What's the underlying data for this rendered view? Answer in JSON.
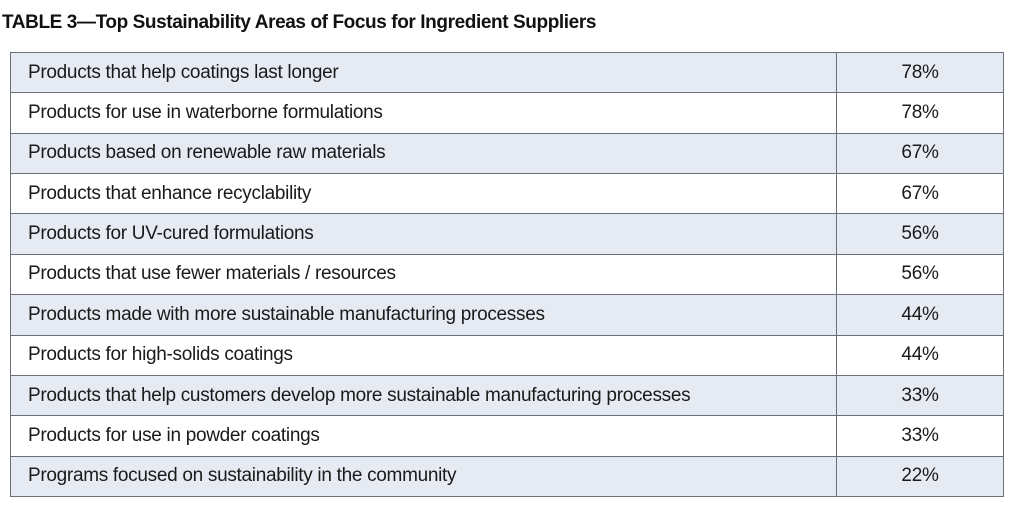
{
  "title": "TABLE 3—Top Sustainability Areas of Focus for Ingredient Suppliers",
  "rows": [
    {
      "label": "Products that help coatings last longer",
      "value": "78%"
    },
    {
      "label": "Products for use in waterborne formulations",
      "value": "78%"
    },
    {
      "label": "Products based on renewable raw materials",
      "value": "67%"
    },
    {
      "label": "Products that enhance recyclability",
      "value": "67%"
    },
    {
      "label": "Products for UV-cured formulations",
      "value": "56%"
    },
    {
      "label": "Products that use fewer materials / resources",
      "value": "56%"
    },
    {
      "label": "Products made with more sustainable manufacturing processes",
      "value": "44%"
    },
    {
      "label": "Products for high-solids coatings",
      "value": "44%"
    },
    {
      "label": "Products that help customers develop more sustainable manufacturing processes",
      "value": "33%"
    },
    {
      "label": "Products for use in powder coatings",
      "value": "33%"
    },
    {
      "label": "Programs focused on sustainability in the community",
      "value": "22%"
    }
  ],
  "colors": {
    "shaded_row": "#e6ebf3",
    "plain_row": "#ffffff",
    "border": "#6b7078"
  }
}
